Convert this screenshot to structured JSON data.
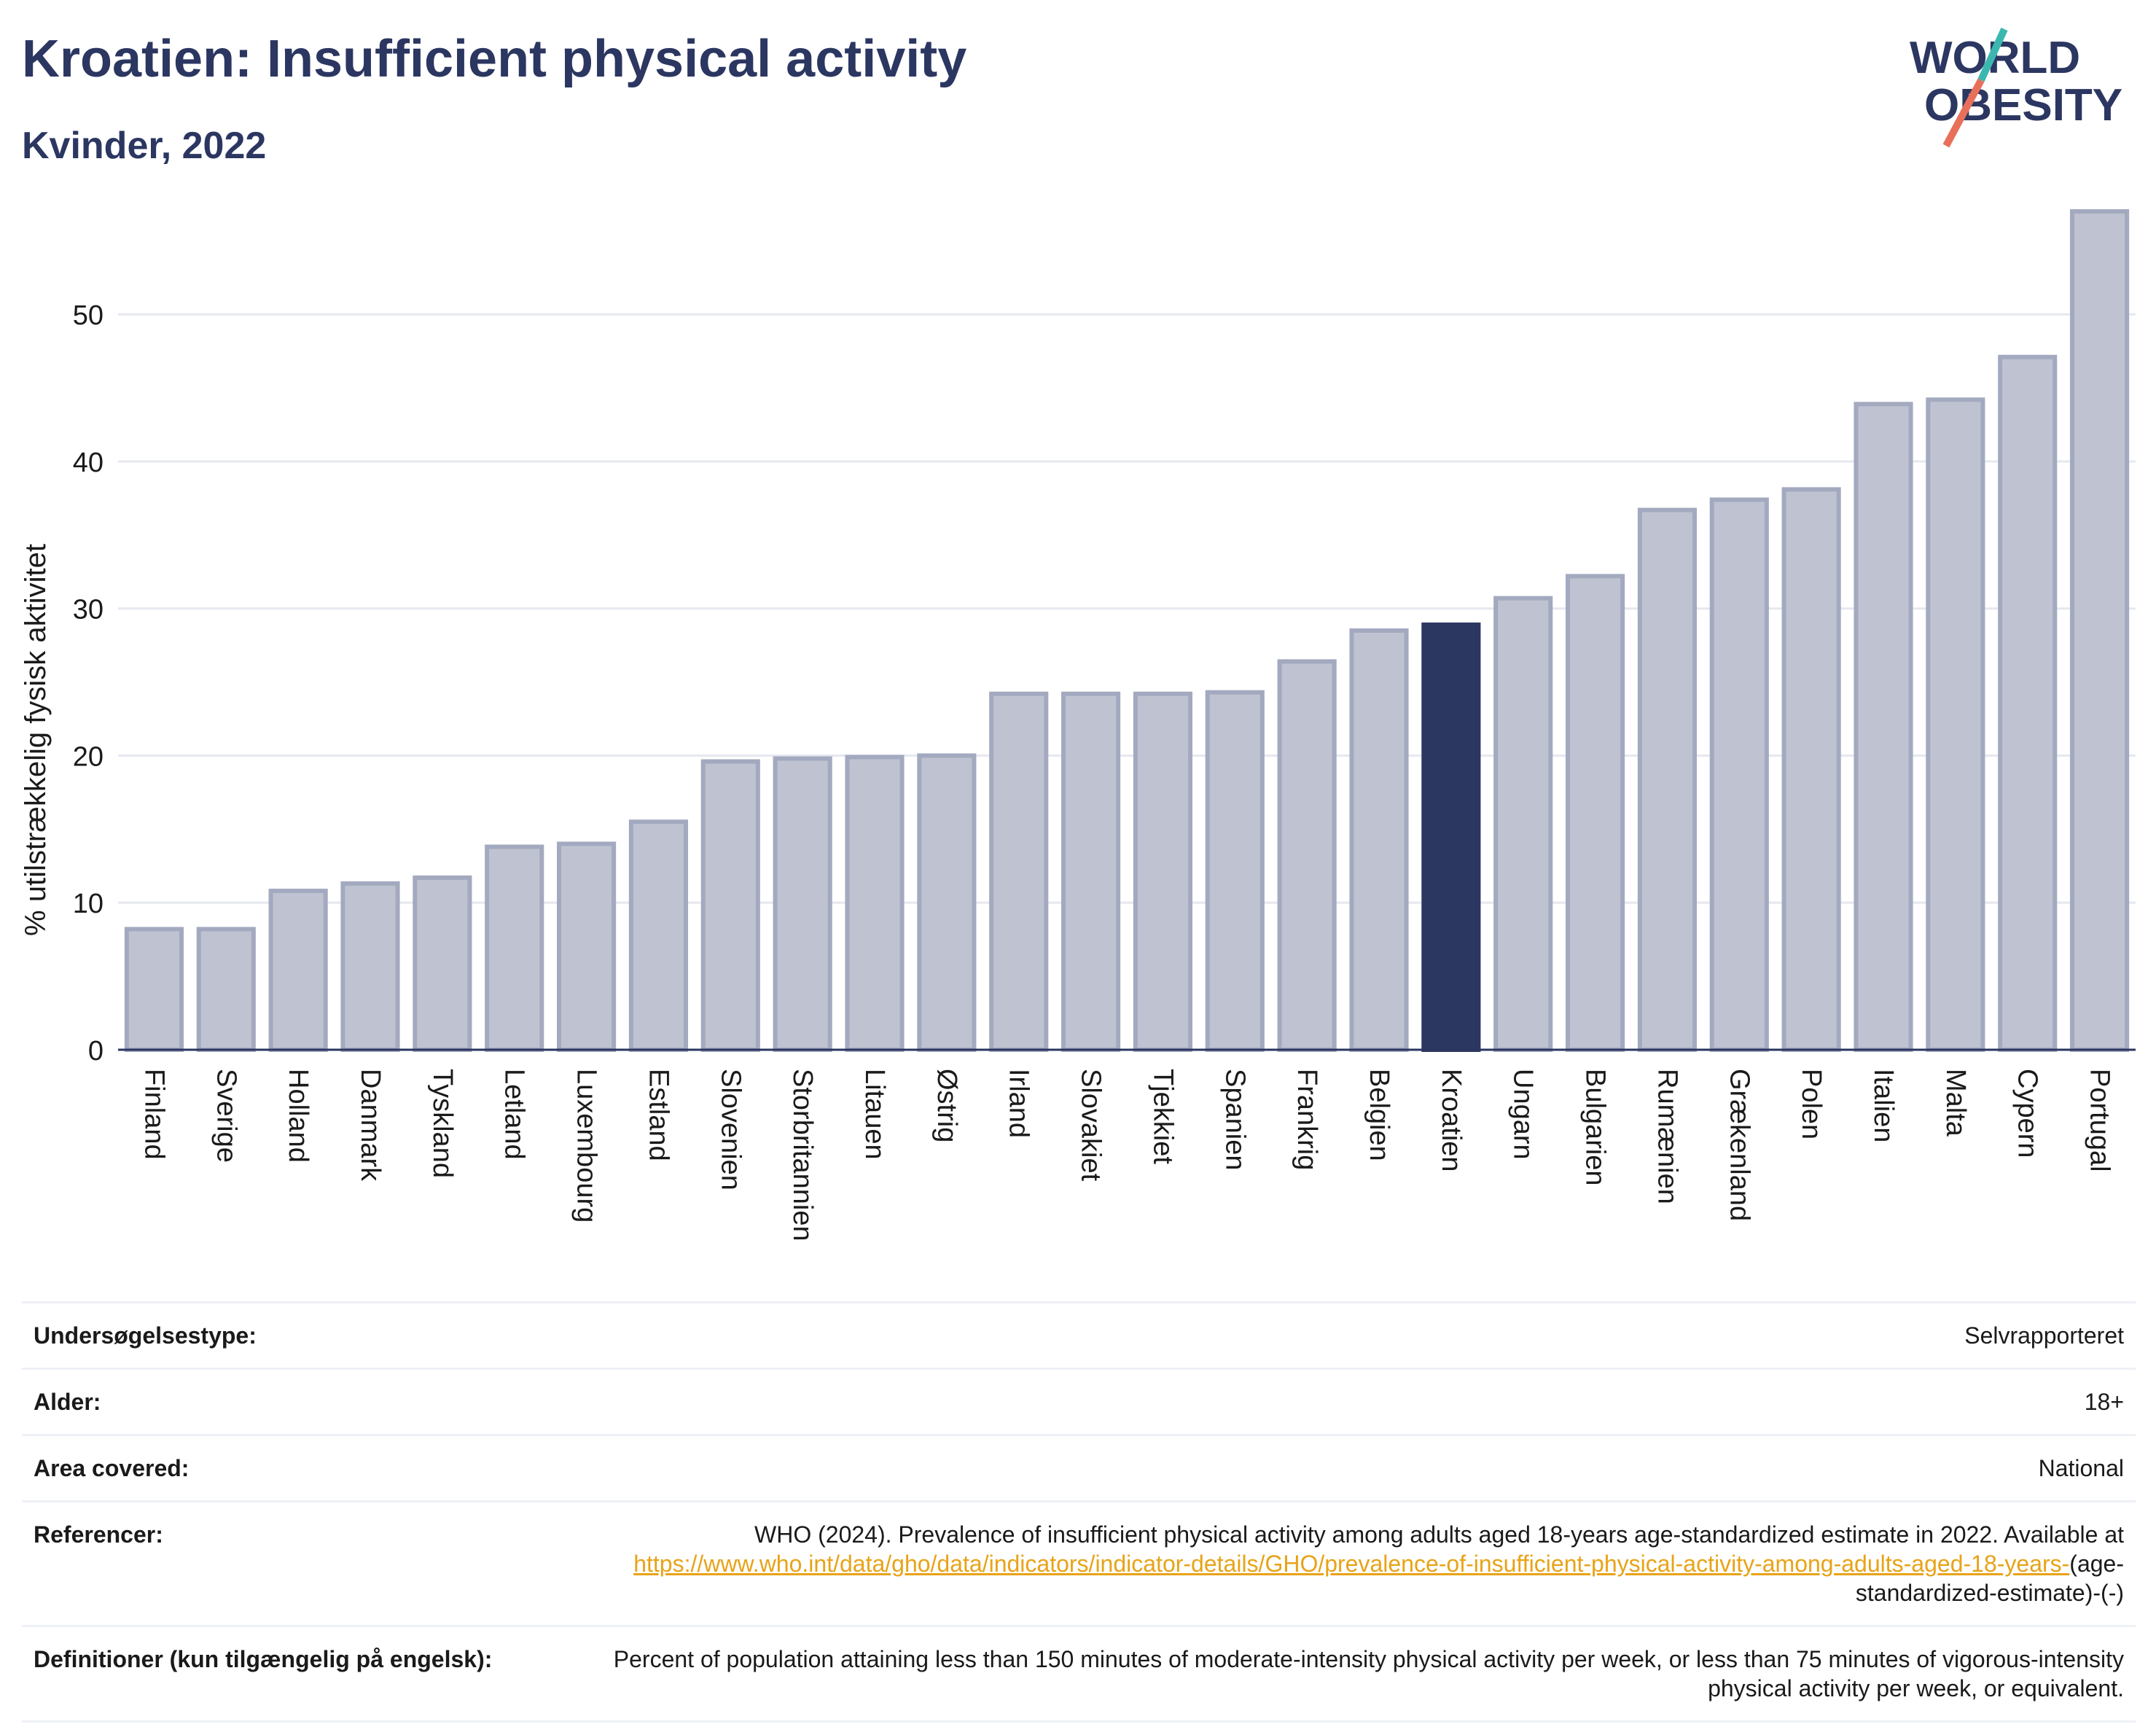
{
  "title": "Kroatien: Insufficient physical activity",
  "subtitle": "Kvinder, 2022",
  "logo": {
    "line1": "WORLD",
    "line2": "OBESITY"
  },
  "colors": {
    "bar": "#bfc3d1",
    "bar_border": "#a3a9bf",
    "highlight": "#2b3661",
    "text": "#2b3661",
    "grid": "#e6e8f0"
  },
  "chart_data": {
    "type": "bar",
    "title": "Kroatien: Insufficient physical activity",
    "subtitle": "Kvinder, 2022",
    "ylabel": "% utilstrækkelig fysisk aktivitet",
    "xlabel": "",
    "ylim": [
      0,
      57
    ],
    "yticks": [
      0,
      10,
      20,
      30,
      40,
      50
    ],
    "grid": true,
    "highlight": "Kroatien",
    "categories": [
      "Finland",
      "Sverige",
      "Holland",
      "Danmark",
      "Tyskland",
      "Letland",
      "Luxembourg",
      "Estland",
      "Slovenien",
      "Storbritannien",
      "Litauen",
      "Østrig",
      "Irland",
      "Slovakiet",
      "Tjekkiet",
      "Spanien",
      "Frankrig",
      "Belgien",
      "Kroatien",
      "Ungarn",
      "Bulgarien",
      "Rumænien",
      "Grækenland",
      "Polen",
      "Italien",
      "Malta",
      "Cypern",
      "Portugal"
    ],
    "values": [
      8.2,
      8.2,
      10.8,
      11.3,
      11.7,
      13.8,
      14.0,
      15.5,
      19.6,
      19.8,
      19.9,
      20.0,
      24.2,
      24.2,
      24.2,
      24.3,
      26.4,
      28.5,
      28.9,
      30.7,
      32.2,
      36.7,
      37.4,
      38.1,
      43.9,
      44.2,
      47.1,
      57.0
    ]
  },
  "info": [
    {
      "label": "Undersøgelsestype:",
      "value": "Selvrapporteret"
    },
    {
      "label": "Alder:",
      "value": "18+"
    },
    {
      "label": "Area covered:",
      "value": "National"
    },
    {
      "label": "Referencer:",
      "value_pre": "WHO (2024). Prevalence of insufficient physical activity among adults aged 18-years age-standardized estimate in 2022. Available at",
      "link": "https://www.who.int/data/gho/data/indicators/indicator-details/GHO/prevalence-of-insufficient-physical-activity-among-adults-aged-18-years-",
      "value_post": "(age-standardized-estimate)-(-)"
    },
    {
      "label": "Definitioner (kun tilgængelig på engelsk):",
      "value": "Percent of population attaining less than 150 minutes of moderate-intensity physical activity per week, or less than 75 minutes of vigorous-intensity physical activity per week, or equivalent."
    }
  ]
}
